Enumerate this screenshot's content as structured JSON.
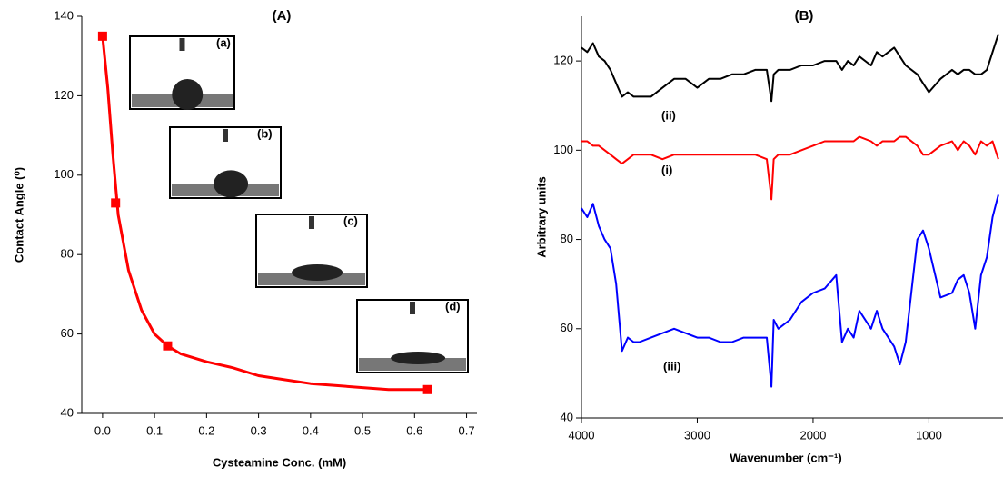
{
  "chart_data": [
    {
      "type": "line",
      "title": "(A)",
      "xlabel": "Cysteamine Conc. (mM)",
      "ylabel": "Contact Angle (⁰)",
      "xlim": [
        -0.04,
        0.72
      ],
      "ylim": [
        40,
        140
      ],
      "xticks": [
        {
          "value": 0,
          "label": "0.0"
        },
        0.1,
        0.2,
        0.3,
        0.4,
        0.5,
        0.6,
        0.7
      ],
      "yticks": [
        40,
        60,
        80,
        100,
        120,
        140
      ],
      "insets": [
        "(a)",
        "(b)",
        "(c)",
        "(d)"
      ],
      "series": [
        {
          "style": "line",
          "color": "#ff0000",
          "x": [
            0,
            0.01,
            0.02,
            0.03,
            0.05,
            0.075,
            0.1,
            0.125,
            0.15,
            0.2,
            0.25,
            0.3,
            0.35,
            0.4,
            0.45,
            0.5,
            0.55,
            0.6,
            0.625
          ],
          "values": [
            135,
            122,
            105,
            90,
            76,
            66,
            60,
            57,
            55,
            53,
            51.5,
            49.5,
            48.5,
            47.5,
            47,
            46.5,
            46,
            46,
            46
          ]
        },
        {
          "style": "markers",
          "color": "#ff0000",
          "x": [
            0,
            0.025,
            0.125,
            0.625
          ],
          "values": [
            135,
            93,
            57,
            46
          ]
        }
      ]
    },
    {
      "type": "line",
      "title": "(B)",
      "xlabel": "Wavenumber (cm⁻¹)",
      "ylabel": "Arbitrary units",
      "xlim": [
        4000,
        360
      ],
      "ylim": [
        40,
        130
      ],
      "xticks": [
        4000,
        3000,
        2000,
        1000
      ],
      "yticks": [
        40,
        60,
        80,
        100,
        120
      ],
      "x": [
        4000,
        3950,
        3900,
        3850,
        3800,
        3750,
        3700,
        3650,
        3600,
        3550,
        3500,
        3400,
        3300,
        3200,
        3100,
        3000,
        2900,
        2800,
        2700,
        2600,
        2500,
        2400,
        2360,
        2340,
        2300,
        2200,
        2100,
        2000,
        1900,
        1800,
        1750,
        1700,
        1650,
        1600,
        1500,
        1450,
        1400,
        1300,
        1250,
        1200,
        1100,
        1050,
        1000,
        900,
        800,
        750,
        700,
        650,
        600,
        550,
        500,
        450,
        400
      ],
      "series": [
        {
          "name": "(ii)",
          "style": "line",
          "color": "#000000",
          "values": [
            123,
            122,
            124,
            121,
            120,
            118,
            115,
            112,
            113,
            112,
            112,
            112,
            114,
            116,
            116,
            114,
            116,
            116,
            117,
            117,
            118,
            118,
            111,
            117,
            118,
            118,
            119,
            119,
            120,
            120,
            118,
            120,
            119,
            121,
            119,
            122,
            121,
            123,
            121,
            119,
            117,
            115,
            113,
            116,
            118,
            117,
            118,
            118,
            117,
            117,
            118,
            122,
            126
          ]
        },
        {
          "name": "(i)",
          "style": "line",
          "color": "#ff0000",
          "values": [
            102,
            102,
            101,
            101,
            100,
            99,
            98,
            97,
            98,
            99,
            99,
            99,
            98,
            99,
            99,
            99,
            99,
            99,
            99,
            99,
            99,
            98,
            89,
            98,
            99,
            99,
            100,
            101,
            102,
            102,
            102,
            102,
            102,
            103,
            102,
            101,
            102,
            102,
            103,
            103,
            101,
            99,
            99,
            101,
            102,
            100,
            102,
            101,
            99,
            102,
            101,
            102,
            98
          ]
        },
        {
          "name": "(iii)",
          "style": "line",
          "color": "#0000ff",
          "values": [
            87,
            85,
            88,
            83,
            80,
            78,
            70,
            55,
            58,
            57,
            57,
            58,
            59,
            60,
            59,
            58,
            58,
            57,
            57,
            58,
            58,
            58,
            47,
            62,
            60,
            62,
            66,
            68,
            69,
            72,
            57,
            60,
            58,
            64,
            60,
            64,
            60,
            56,
            52,
            57,
            80,
            82,
            78,
            67,
            68,
            71,
            72,
            68,
            60,
            72,
            76,
            85,
            90
          ]
        }
      ]
    }
  ]
}
